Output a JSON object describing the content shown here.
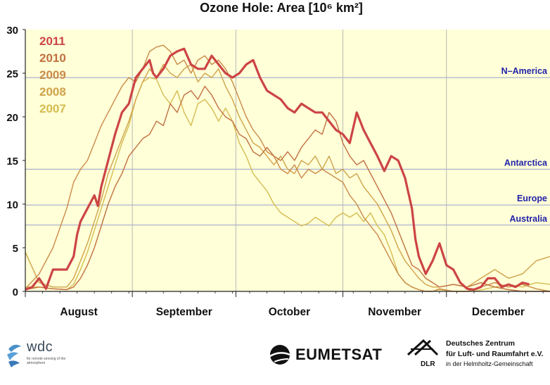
{
  "chart_data": {
    "type": "line",
    "title": "Ozone Hole: Area [10⁶ km²]",
    "xlabel": "",
    "ylabel": "",
    "ylim": [
      0,
      30
    ],
    "yticks": [
      0,
      5,
      10,
      15,
      20,
      25,
      30
    ],
    "xlim": [
      0,
      152
    ],
    "month_labels": [
      "August",
      "September",
      "October",
      "November",
      "December"
    ],
    "month_starts": [
      0,
      31,
      61,
      92,
      122
    ],
    "reference_lines": [
      {
        "label": "N–America",
        "value": 24.5
      },
      {
        "label": "Antarctica",
        "value": 14.0
      },
      {
        "label": "Europe",
        "value": 9.9
      },
      {
        "label": "Australia",
        "value": 7.6
      }
    ],
    "reference_color": "#2222aa",
    "background_color": "#ffffd8",
    "series": [
      {
        "name": "2007",
        "color": "#d4bc50",
        "width": 1.4,
        "x": [
          0,
          4,
          8,
          12,
          14,
          16,
          18,
          20,
          22,
          24,
          26,
          28,
          30,
          32,
          34,
          36,
          38,
          40,
          42,
          44,
          46,
          48,
          50,
          52,
          54,
          56,
          58,
          60,
          62,
          64,
          66,
          68,
          70,
          72,
          74,
          76,
          78,
          80,
          82,
          84,
          86,
          88,
          90,
          92,
          94,
          96,
          98,
          100,
          102,
          104,
          106,
          108,
          110,
          112,
          114,
          116,
          118,
          120,
          124,
          130,
          136,
          140,
          144,
          148,
          152
        ],
        "y": [
          0.5,
          0.5,
          0.3,
          0.2,
          0.8,
          2.5,
          4.5,
          7.0,
          9.5,
          12.0,
          14.5,
          17.0,
          19.0,
          22.0,
          24.0,
          24.5,
          24.3,
          22.5,
          21.5,
          23.0,
          20.5,
          19.0,
          21.5,
          22.0,
          21.0,
          19.5,
          21.0,
          19.5,
          17.0,
          15.5,
          13.5,
          12.5,
          11.5,
          10.0,
          9.0,
          8.5,
          8.0,
          7.5,
          7.8,
          8.5,
          8.0,
          7.5,
          8.5,
          9.0,
          8.5,
          9.0,
          8.0,
          9.0,
          7.5,
          6.5,
          4.5,
          2.0,
          1.0,
          0.5,
          0.2,
          0.0,
          0.0,
          0.2,
          0.0,
          0.0,
          0.5,
          0.8,
          0.5,
          1.0,
          0.8
        ]
      },
      {
        "name": "2008",
        "color": "#cfa24a",
        "width": 1.4,
        "x": [
          0,
          4,
          8,
          12,
          14,
          16,
          18,
          20,
          22,
          24,
          26,
          28,
          30,
          32,
          34,
          36,
          38,
          40,
          42,
          44,
          46,
          48,
          50,
          52,
          54,
          56,
          58,
          60,
          62,
          64,
          66,
          68,
          70,
          72,
          74,
          76,
          78,
          80,
          82,
          84,
          86,
          88,
          90,
          92,
          94,
          96,
          98,
          100,
          102,
          104,
          106,
          108,
          110,
          112,
          114,
          116,
          118,
          120,
          124,
          128,
          132,
          136,
          140,
          144,
          148,
          152
        ],
        "y": [
          4.5,
          1.0,
          0.5,
          0.5,
          1.5,
          3.5,
          5.5,
          8.0,
          10.5,
          13.5,
          15.5,
          17.5,
          19.5,
          22.0,
          24.0,
          25.5,
          24.5,
          26.0,
          25.0,
          24.5,
          25.5,
          26.0,
          24.0,
          25.0,
          24.5,
          25.5,
          23.5,
          22.0,
          20.0,
          18.5,
          17.0,
          16.5,
          15.5,
          14.5,
          15.5,
          14.0,
          13.5,
          15.0,
          14.5,
          15.5,
          14.0,
          15.5,
          13.5,
          14.0,
          13.0,
          13.5,
          12.0,
          11.0,
          10.0,
          8.5,
          7.0,
          5.0,
          3.5,
          2.5,
          1.5,
          0.8,
          0.5,
          0.5,
          0.8,
          0.5,
          1.5,
          2.5,
          1.5,
          2.0,
          3.5,
          4.0
        ]
      },
      {
        "name": "2009",
        "color": "#c98a48",
        "width": 1.4,
        "x": [
          0,
          4,
          8,
          12,
          14,
          16,
          18,
          20,
          22,
          24,
          26,
          28,
          30,
          32,
          34,
          36,
          38,
          40,
          42,
          44,
          46,
          48,
          50,
          52,
          54,
          56,
          58,
          60,
          62,
          64,
          66,
          68,
          70,
          72,
          74,
          76,
          78,
          80,
          82,
          84,
          86,
          88,
          90,
          92,
          94,
          96,
          98,
          100,
          102,
          104,
          106,
          108,
          110,
          112,
          114,
          116,
          118,
          120,
          124,
          128,
          132,
          136,
          140,
          144,
          148,
          152
        ],
        "y": [
          0.3,
          2.0,
          5.0,
          9.5,
          12.5,
          14.0,
          15.0,
          17.0,
          19.0,
          20.5,
          22.0,
          23.5,
          24.5,
          24.0,
          25.5,
          27.5,
          28.0,
          28.2,
          27.5,
          26.0,
          26.5,
          25.0,
          26.5,
          27.0,
          26.0,
          26.5,
          25.5,
          24.0,
          22.0,
          20.0,
          18.5,
          17.5,
          16.0,
          15.5,
          14.0,
          13.5,
          14.5,
          13.0,
          14.0,
          13.5,
          14.0,
          13.5,
          13.0,
          12.5,
          11.0,
          10.0,
          8.5,
          7.5,
          6.5,
          5.0,
          3.5,
          2.0,
          1.0,
          0.5,
          0.2,
          0.0,
          0.0,
          0.3,
          0.0,
          0.0,
          0.5,
          1.0,
          0.5,
          0.8,
          0.3,
          0.0
        ]
      },
      {
        "name": "2010",
        "color": "#c07040",
        "width": 1.4,
        "x": [
          0,
          4,
          8,
          12,
          14,
          16,
          18,
          20,
          22,
          24,
          26,
          28,
          30,
          32,
          34,
          36,
          38,
          40,
          42,
          44,
          46,
          48,
          50,
          52,
          54,
          56,
          58,
          60,
          62,
          64,
          66,
          68,
          70,
          72,
          74,
          76,
          78,
          80,
          82,
          84,
          86,
          88,
          90,
          92,
          94,
          96,
          98,
          100,
          102,
          104,
          106,
          108,
          110,
          112,
          114,
          116,
          118,
          120,
          124,
          128,
          132,
          136,
          140,
          144,
          148,
          152
        ],
        "y": [
          0.2,
          0.5,
          0.3,
          0.2,
          0.5,
          1.5,
          3.0,
          5.0,
          7.5,
          10.0,
          12.0,
          13.5,
          15.5,
          16.5,
          17.5,
          18.0,
          19.5,
          19.0,
          21.5,
          20.5,
          22.5,
          23.0,
          22.0,
          23.5,
          22.5,
          21.0,
          20.0,
          19.5,
          18.0,
          17.5,
          16.0,
          15.5,
          16.5,
          15.5,
          15.0,
          16.0,
          15.0,
          16.5,
          17.5,
          18.5,
          18.0,
          20.5,
          19.5,
          17.0,
          15.5,
          14.5,
          15.0,
          13.5,
          12.0,
          10.5,
          9.0,
          7.0,
          5.0,
          3.0,
          2.5,
          1.5,
          1.0,
          0.5,
          0.8,
          0.5,
          1.0,
          0.5,
          0.2,
          0.0,
          0.0,
          0.0
        ]
      },
      {
        "name": "2011",
        "color": "#cc4444",
        "width": 3.2,
        "x": [
          0,
          2,
          4,
          6,
          8,
          10,
          12,
          14,
          15,
          16,
          18,
          20,
          21,
          22,
          24,
          26,
          28,
          30,
          32,
          34,
          36,
          37,
          38,
          40,
          42,
          44,
          46,
          48,
          50,
          52,
          54,
          56,
          58,
          60,
          62,
          64,
          66,
          68,
          70,
          72,
          74,
          76,
          78,
          80,
          82,
          84,
          86,
          88,
          90,
          92,
          94,
          96,
          98,
          100,
          102,
          104,
          106,
          108,
          110,
          112,
          113,
          114,
          116,
          118,
          120,
          122,
          124,
          126,
          128,
          130,
          132,
          134,
          136,
          138,
          140,
          142,
          144,
          146
        ],
        "y": [
          0.2,
          0.5,
          1.5,
          0.3,
          2.5,
          2.5,
          2.5,
          4.0,
          6.5,
          8.0,
          9.5,
          11.0,
          9.8,
          12.0,
          15.0,
          18.0,
          20.5,
          21.5,
          24.5,
          25.5,
          26.5,
          25.0,
          24.5,
          25.5,
          27.0,
          27.5,
          27.8,
          26.0,
          25.5,
          25.5,
          27.0,
          26.0,
          25.0,
          24.5,
          25.0,
          26.0,
          26.5,
          24.5,
          23.0,
          22.5,
          22.0,
          21.0,
          20.5,
          21.5,
          21.0,
          20.5,
          20.5,
          19.5,
          18.5,
          18.0,
          17.0,
          20.5,
          18.5,
          17.0,
          15.5,
          13.8,
          15.5,
          15.0,
          13.0,
          9.5,
          6.0,
          4.0,
          2.0,
          3.5,
          5.5,
          3.0,
          2.5,
          1.0,
          0.3,
          0.2,
          0.5,
          1.5,
          1.5,
          0.5,
          0.8,
          0.5,
          1.0,
          0.8
        ]
      }
    ]
  },
  "logos": {
    "wdc_name": "wdc",
    "wdc_sub": "for remote sensing of the atmosphere",
    "eumetsat_name": "EUMETSAT",
    "dlr_abbr": "DLR",
    "dlr_line1": "Deutsches Zentrum",
    "dlr_line2": "für Luft- und Raumfahrt e.V.",
    "dlr_line3": "in der Helmholtz-Gemeinschaft"
  }
}
